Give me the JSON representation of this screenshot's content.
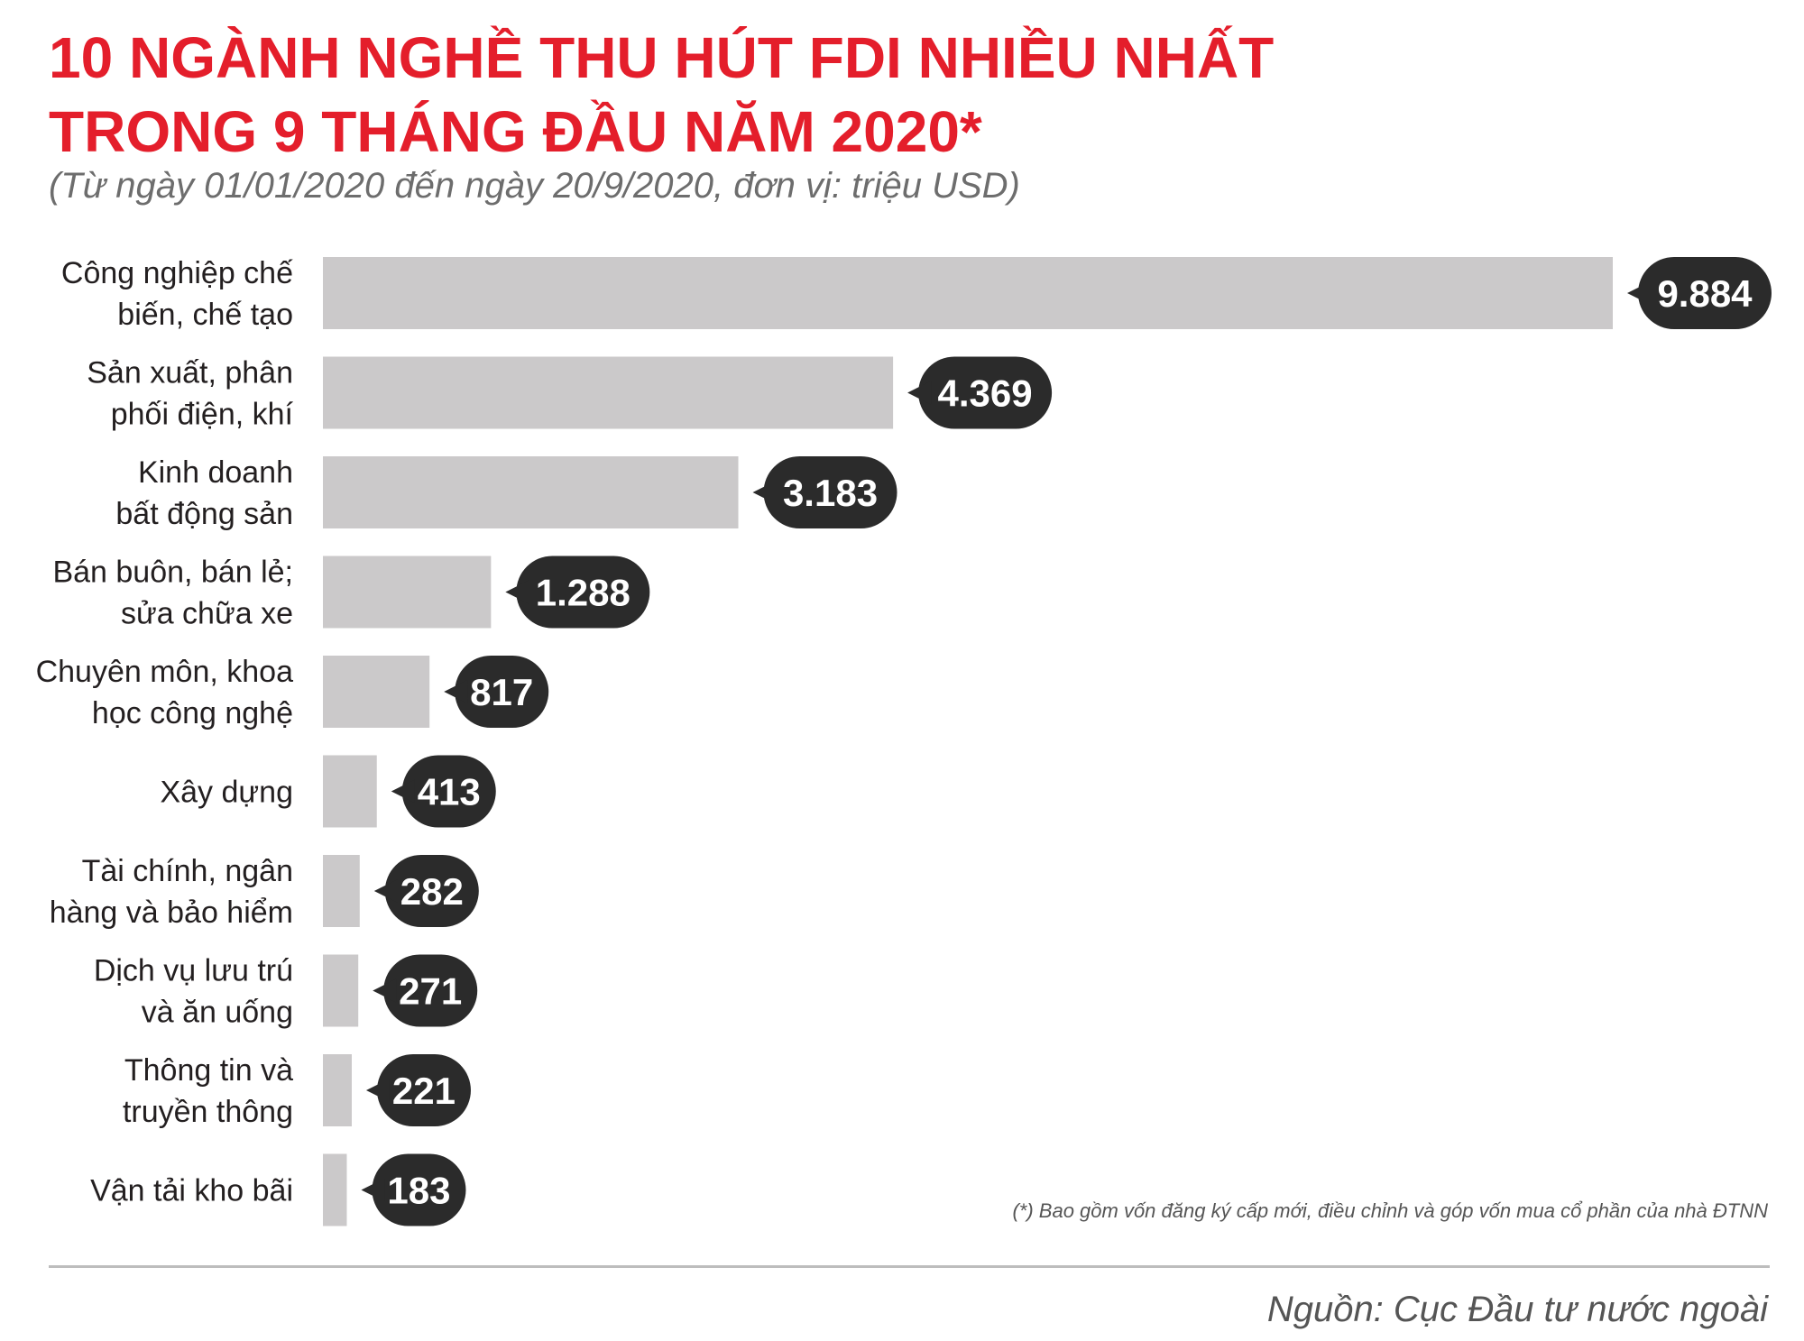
{
  "title": {
    "line1": "10 NGÀNH NGHỀ THU HÚT FDI NHIỀU NHẤT",
    "line2": "TRONG 9 THÁNG ĐẦU NĂM 2020*"
  },
  "subtitle": "(Từ ngày 01/01/2020 đến ngày 20/9/2020, đơn vị: triệu USD)",
  "footnote": "(*) Bao gồm vốn đăng ký cấp mới, điều chỉnh và góp vốn mua cổ phần của nhà ĐTNN",
  "source": "Nguồn: Cục Đầu tư nước ngoài",
  "colors": {
    "title": "#e41e2b",
    "bar": "#cbc9ca",
    "callout": "#2b2b2b",
    "text": "#231f20"
  },
  "chart_data": {
    "type": "bar",
    "orientation": "horizontal",
    "unit": "triệu USD",
    "categories": [
      [
        "Công nghiệp chế",
        "biến, chế tạo"
      ],
      [
        "Sản xuất, phân",
        "phối điện, khí"
      ],
      [
        "Kinh doanh",
        "bất động sản"
      ],
      [
        "Bán buôn, bán lẻ;",
        "sửa chữa xe"
      ],
      [
        "Chuyên môn, khoa",
        "học công nghệ"
      ],
      [
        "Xây dựng"
      ],
      [
        "Tài chính, ngân",
        "hàng và bảo hiểm"
      ],
      [
        "Dịch vụ lưu trú",
        "và ăn uống"
      ],
      [
        "Thông tin và",
        "truyền thông"
      ],
      [
        "Vận tải kho bãi"
      ]
    ],
    "values": [
      9884,
      4369,
      3183,
      1288,
      817,
      413,
      282,
      271,
      221,
      183
    ],
    "value_labels": [
      "9.884",
      "4.369",
      "3.183",
      "1.288",
      "817",
      "413",
      "282",
      "271",
      "221",
      "183"
    ],
    "xlim": [
      0,
      9884
    ],
    "grid": false,
    "legend": "none"
  }
}
